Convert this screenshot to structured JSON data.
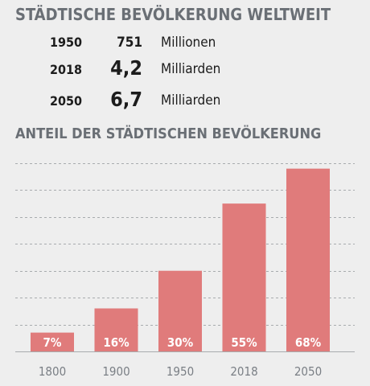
{
  "header": {
    "title": "STÄDTISCHE BEVÖLKERUNG WELTWEIT"
  },
  "stats": [
    {
      "year": "1950",
      "value": "751",
      "unit": "Millionen"
    },
    {
      "year": "2018",
      "value": "4,2",
      "unit": "Milliarden"
    },
    {
      "year": "2050",
      "value": "6,7",
      "unit": "Milliarden"
    }
  ],
  "chart_data": {
    "type": "bar",
    "title": "ANTEIL DER STÄDTISCHEN BEVÖLKERUNG",
    "categories": [
      "1800",
      "1900",
      "1950",
      "2018",
      "2050"
    ],
    "values": [
      7,
      16,
      30,
      55,
      68
    ],
    "value_labels": [
      "7%",
      "16%",
      "30%",
      "55%",
      "68%"
    ],
    "ylim": [
      0,
      70
    ],
    "grid": true,
    "colors": {
      "bar": "#e07b7b",
      "title": "#6a6f75",
      "background": "#eeeeee"
    }
  }
}
